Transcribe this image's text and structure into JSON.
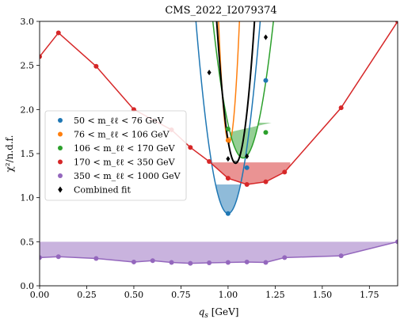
{
  "chart_data": {
    "type": "line",
    "title": "CMS_2022_I2079374",
    "xlabel": "q_s [GeV]",
    "ylabel": "χ²/n.d.f.",
    "xlim": [
      0.0,
      1.9
    ],
    "ylim": [
      0.0,
      3.0
    ],
    "xticks": [
      "0.00",
      "0.25",
      "0.50",
      "0.75",
      "1.00",
      "1.25",
      "1.50",
      "1.75"
    ],
    "yticks": [
      "0.0",
      "0.5",
      "1.0",
      "1.5",
      "2.0",
      "2.5",
      "3.0"
    ],
    "legend_position": "center-left",
    "series": [
      {
        "name": "50 < m_ℓℓ < 76 GeV",
        "color": "#1f77b4",
        "marker": "circle",
        "points": [
          [
            1.0,
            0.82
          ],
          [
            1.1,
            1.34
          ],
          [
            1.2,
            2.33
          ]
        ],
        "curve": {
          "center": 1.0,
          "minimum": 0.82,
          "curvature": 75
        },
        "band": {
          "x": [
            0.9,
            1.1
          ],
          "ymax": 1.15
        }
      },
      {
        "name": "76 < m_ℓℓ < 106 GeV",
        "color": "#ff7f0e",
        "marker": "circle",
        "points": [
          [
            1.0,
            1.65
          ]
        ],
        "curve": {
          "center": 1.005,
          "minimum": 1.62,
          "curvature": 450
        },
        "band": {
          "x": [
            0.99,
            1.02
          ],
          "ymax": 1.69
        }
      },
      {
        "name": "106 < m_ℓℓ < 170 GeV",
        "color": "#2ca02c",
        "marker": "circle",
        "points": [
          [
            1.0,
            1.78
          ],
          [
            1.2,
            1.74
          ]
        ],
        "curve": {
          "center": 1.08,
          "minimum": 1.45,
          "curvature": 60
        },
        "band": {
          "x": [
            1.01,
            1.23
          ],
          "ymax": 1.85
        }
      },
      {
        "name": "170 < m_ℓℓ < 350 GeV",
        "color": "#d62728",
        "marker": "circle",
        "points": [
          [
            0.0,
            2.6
          ],
          [
            0.1,
            2.87
          ],
          [
            0.3,
            2.49
          ],
          [
            0.5,
            2.0
          ],
          [
            0.7,
            1.77
          ],
          [
            0.8,
            1.57
          ],
          [
            0.9,
            1.41
          ],
          [
            1.0,
            1.22
          ],
          [
            1.1,
            1.15
          ],
          [
            1.2,
            1.18
          ],
          [
            1.3,
            1.29
          ],
          [
            1.6,
            2.02
          ],
          [
            1.9,
            3.0
          ]
        ],
        "band": {
          "x": [
            0.9,
            1.33
          ],
          "ymax": 1.4
        }
      },
      {
        "name": "350 < m_ℓℓ < 1000 GeV",
        "color": "#9467bd",
        "marker": "circle",
        "points": [
          [
            0.0,
            0.32
          ],
          [
            0.1,
            0.33
          ],
          [
            0.3,
            0.31
          ],
          [
            0.5,
            0.27
          ],
          [
            0.6,
            0.285
          ],
          [
            0.7,
            0.265
          ],
          [
            0.8,
            0.255
          ],
          [
            0.9,
            0.26
          ],
          [
            1.0,
            0.265
          ],
          [
            1.1,
            0.27
          ],
          [
            1.2,
            0.265
          ],
          [
            1.3,
            0.32
          ],
          [
            1.6,
            0.34
          ],
          [
            1.9,
            0.5
          ]
        ],
        "band": {
          "x": [
            0.0,
            1.9
          ],
          "ymax": 0.5
        }
      },
      {
        "name": "Combined fit",
        "color": "#000000",
        "marker": "diamond",
        "points": [
          [
            0.9,
            2.42
          ],
          [
            1.0,
            1.44
          ],
          [
            1.1,
            1.47
          ],
          [
            1.2,
            2.82
          ]
        ],
        "curve": {
          "center": 1.04,
          "minimum": 1.39,
          "curvature": 160
        },
        "band": {
          "x": [
            0.99,
            1.08
          ],
          "ymax": 1.42
        }
      }
    ]
  }
}
